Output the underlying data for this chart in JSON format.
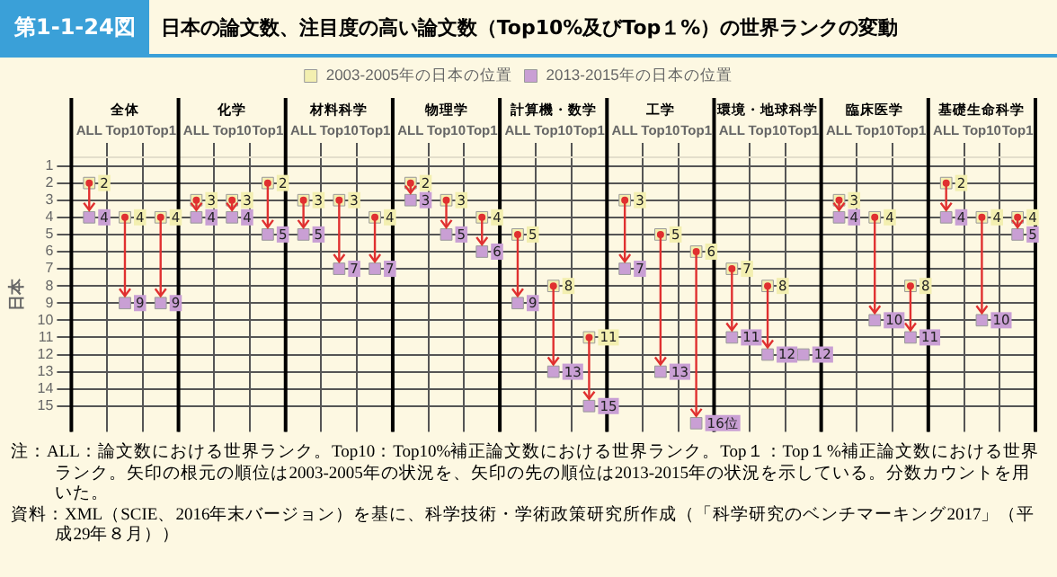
{
  "chart_data": {
    "type": "scatter",
    "title": "第1-1-24図",
    "subtitle": "日本の論文数、注目度の高い論文数（Top10%及びTop１%）の世界ランクの変動",
    "ylabel": "日本",
    "categories": [
      "ALL",
      "Top10",
      "Top1",
      "ALL",
      "Top10",
      "Top1",
      "ALL",
      "Top10",
      "Top1",
      "ALL",
      "Top10",
      "Top1",
      "ALL",
      "Top10",
      "Top1",
      "ALL",
      "Top10",
      "Top1",
      "ALL",
      "Top10",
      "Top1",
      "ALL",
      "Top10",
      "Top1",
      "ALL",
      "Top10",
      "Top1"
    ],
    "series": [
      {
        "name": "2003-2005年の日本の位置",
        "color": "#f3efb0",
        "values": [
          2,
          4,
          4,
          3,
          3,
          2,
          3,
          3,
          4,
          2,
          3,
          4,
          5,
          8,
          11,
          3,
          5,
          6,
          7,
          8,
          null,
          3,
          4,
          8,
          2,
          4,
          4
        ],
        "value_labels": [
          "2",
          "4",
          "4",
          "3",
          "3",
          "2",
          "3",
          "3",
          "4",
          "2",
          "3",
          "4",
          "5",
          "8",
          "11",
          "3",
          "5",
          "6",
          "7",
          "8",
          null,
          "3",
          "4",
          "8",
          "2",
          "4",
          "4"
        ]
      },
      {
        "name": "2013-2015年の日本の位置",
        "color": "#c99fd4",
        "values": [
          4,
          9,
          9,
          4,
          4,
          5,
          5,
          7,
          7,
          3,
          5,
          6,
          9,
          13,
          15,
          7,
          13,
          16,
          11,
          12,
          12,
          4,
          10,
          11,
          4,
          10,
          5
        ],
        "value_labels": [
          "4",
          "9",
          "9",
          "4",
          "4",
          "5",
          "5",
          "7",
          "7",
          "3",
          "5",
          "6",
          "9",
          "13",
          "15",
          "7",
          "13",
          "16位",
          "11",
          "12",
          "12",
          "4",
          "10",
          "11",
          "4",
          "10",
          "5"
        ]
      }
    ],
    "ylim": [
      16.5,
      0.5
    ],
    "yticks": [
      1,
      2,
      3,
      4,
      5,
      6,
      7,
      8,
      9,
      10,
      11,
      12,
      13,
      14,
      15
    ],
    "grid": true,
    "legend": "top",
    "marker": "square",
    "annotations": [
      "全体",
      "化学",
      "材料科学",
      "物理学",
      "計算機・数学",
      "工学",
      "環境・地球科学",
      "臨床医学",
      "基礎生命科学",
      "注：ALL：論文数における世界ランク。Top10：Top10%補正論文数における世界ランク。Top１：Top１%補正論文数における世界ランク。矢印の根元の順位は2003-2005年の状況を、矢印の先の順位は2013-2015年の状況を示している。分数カウントを用いた。",
      "資料：XML（SCIE、2016年末バージョン）を基に、科学技術・学術政策研究所作成（「科学研究のベンチマーキング2017」（平成29年８月））"
    ]
  }
}
